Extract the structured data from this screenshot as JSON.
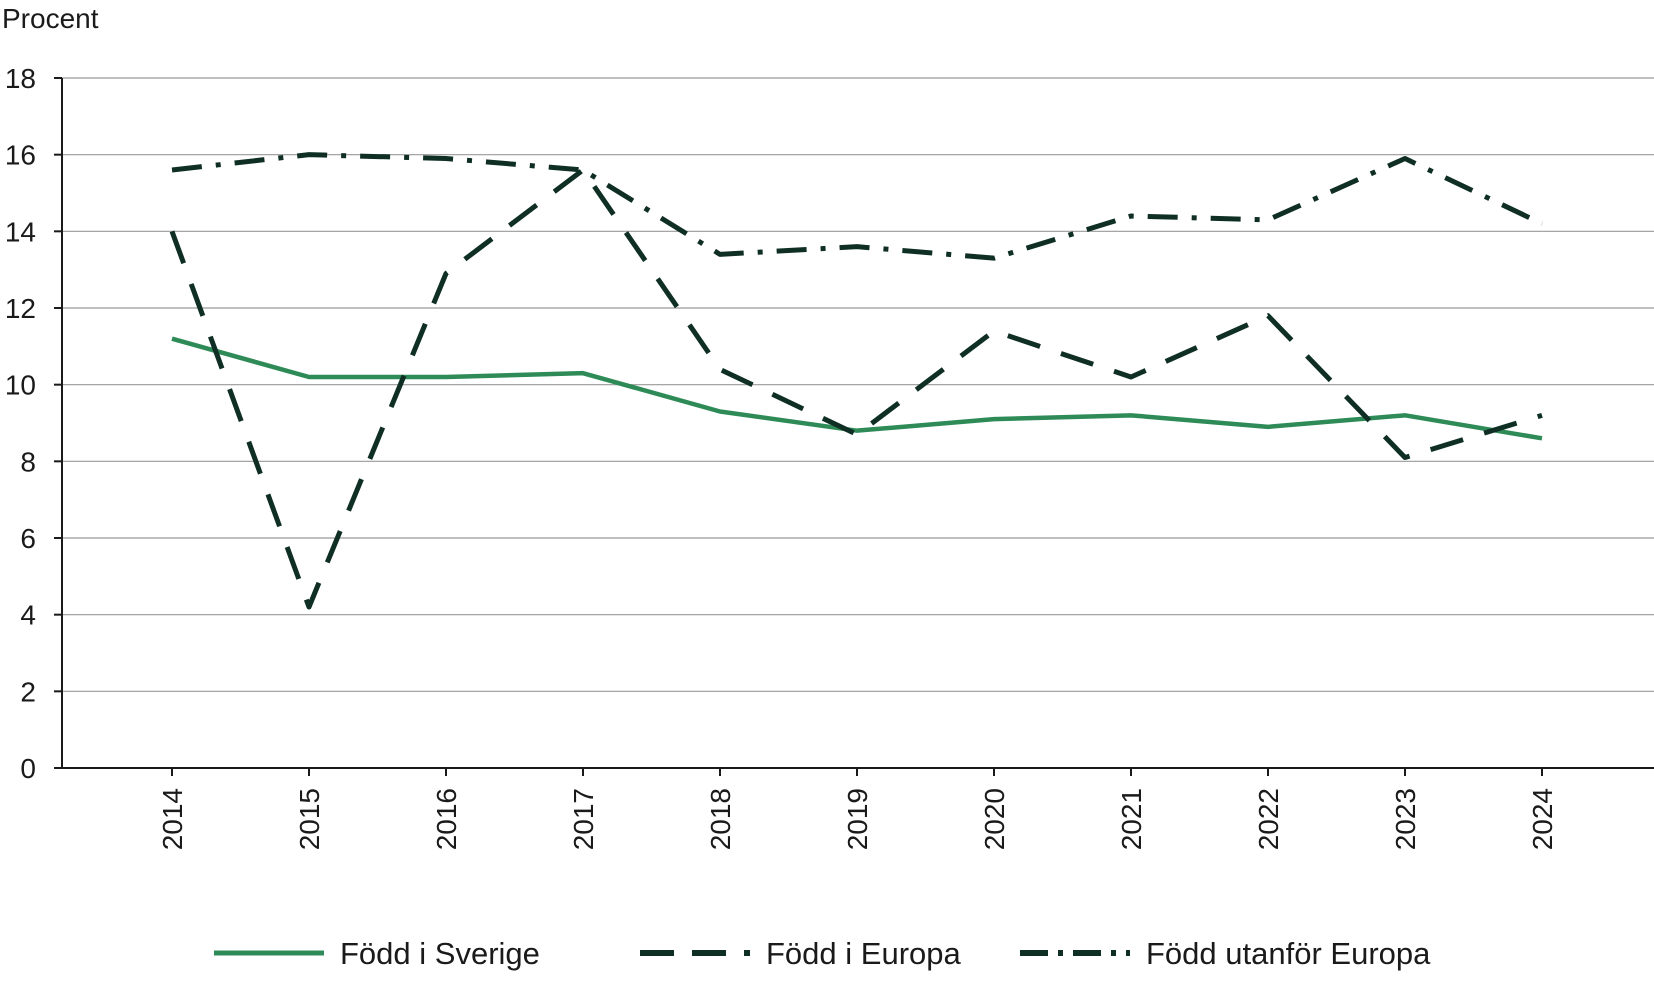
{
  "chart_data": {
    "type": "line",
    "ylabel": "Procent",
    "xlabel": "",
    "ylim": [
      0,
      18
    ],
    "y_ticks": [
      0,
      2,
      4,
      6,
      8,
      10,
      12,
      14,
      16,
      18
    ],
    "grid": true,
    "legend_position": "bottom",
    "categories": [
      "2014",
      "2015",
      "2016",
      "2017",
      "2018",
      "2019",
      "2020",
      "2021",
      "2022",
      "2023",
      "2024"
    ],
    "series": [
      {
        "name": "Född i Sverige",
        "style": "solid",
        "color": "#2e8b57",
        "values": [
          11.2,
          10.2,
          10.2,
          10.3,
          9.3,
          8.8,
          9.1,
          9.2,
          8.9,
          9.2,
          8.6
        ]
      },
      {
        "name": "Född i Europa",
        "style": "dashed",
        "color": "#0f2f24",
        "values": [
          14.0,
          4.2,
          12.9,
          15.6,
          10.4,
          8.7,
          11.4,
          10.2,
          11.8,
          8.1,
          9.2
        ]
      },
      {
        "name": "Född utanför Europa",
        "style": "dashdot",
        "color": "#0f2f24",
        "values": [
          15.6,
          16.0,
          15.9,
          15.6,
          13.4,
          13.6,
          13.3,
          14.4,
          14.3,
          15.9,
          14.2
        ]
      }
    ]
  }
}
